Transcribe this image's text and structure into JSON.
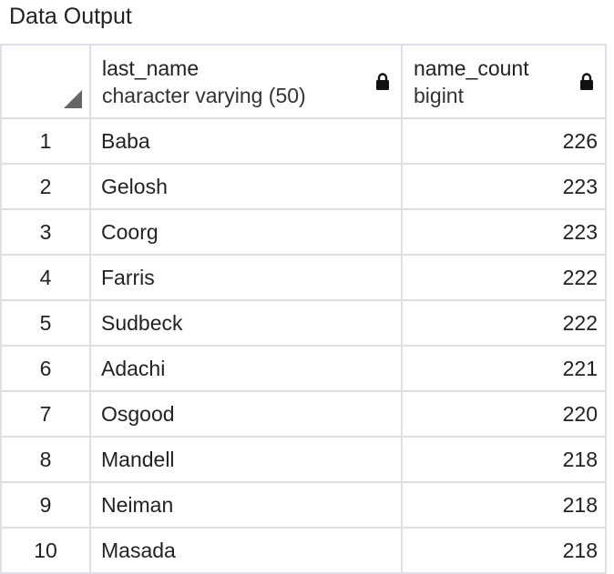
{
  "panel": {
    "title": "Data Output"
  },
  "columns": [
    {
      "name": "last_name",
      "type": "character varying (50)",
      "icon": "lock-icon"
    },
    {
      "name": "name_count",
      "type": "bigint",
      "icon": "lock-icon"
    }
  ],
  "rows": [
    {
      "num": "1",
      "last_name": "Baba",
      "name_count": "226"
    },
    {
      "num": "2",
      "last_name": "Gelosh",
      "name_count": "223"
    },
    {
      "num": "3",
      "last_name": "Coorg",
      "name_count": "223"
    },
    {
      "num": "4",
      "last_name": "Farris",
      "name_count": "222"
    },
    {
      "num": "5",
      "last_name": "Sudbeck",
      "name_count": "222"
    },
    {
      "num": "6",
      "last_name": "Adachi",
      "name_count": "221"
    },
    {
      "num": "7",
      "last_name": "Osgood",
      "name_count": "220"
    },
    {
      "num": "8",
      "last_name": "Mandell",
      "name_count": "218"
    },
    {
      "num": "9",
      "last_name": "Neiman",
      "name_count": "218"
    },
    {
      "num": "10",
      "last_name": "Masada",
      "name_count": "218"
    }
  ]
}
